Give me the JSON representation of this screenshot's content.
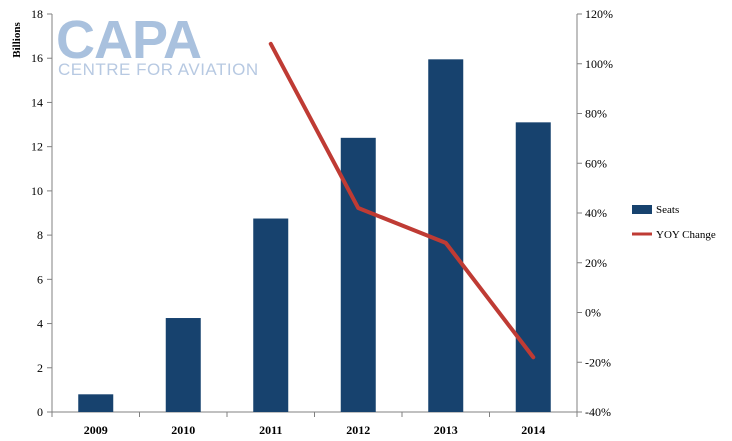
{
  "logo": {
    "main": "CAPA",
    "sub": "CENTRE FOR AVIATION"
  },
  "chart_data": {
    "type": "bar",
    "title": "",
    "categories": [
      "2009",
      "2010",
      "2011",
      "2012",
      "2013",
      "2014"
    ],
    "ylabel": "Billions",
    "ylim": [
      0,
      18
    ],
    "yticks": [
      "0",
      "2",
      "4",
      "6",
      "8",
      "10",
      "12",
      "14",
      "16",
      "18"
    ],
    "y2lim": [
      -40,
      120
    ],
    "y2ticks": [
      "-40%",
      "-20%",
      "0%",
      "20%",
      "40%",
      "60%",
      "80%",
      "100%",
      "120%"
    ],
    "grid": false,
    "legend_placement": "right",
    "series": [
      {
        "name": "Seats",
        "type": "bar",
        "axis": "left",
        "color": "#17426e",
        "values": [
          0.8,
          4.25,
          8.75,
          12.4,
          15.95,
          13.1
        ]
      },
      {
        "name": "YOY Change",
        "type": "line",
        "axis": "right",
        "color": "#bf3b34",
        "values": [
          null,
          null,
          108,
          42,
          28,
          -18
        ]
      }
    ]
  }
}
